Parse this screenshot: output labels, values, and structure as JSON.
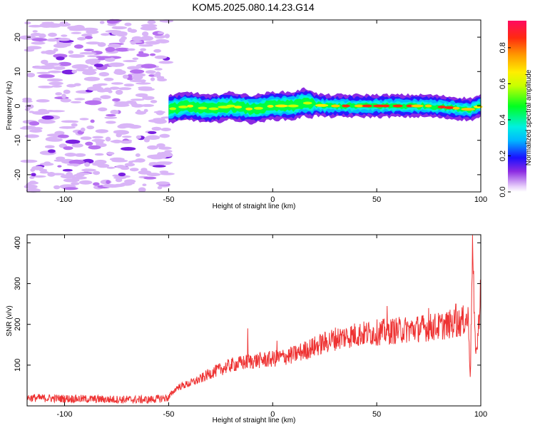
{
  "title": "KOM5.2025.080.14.23.G14",
  "chart_data": [
    {
      "type": "heatmap",
      "xlabel": "Height of straight line (km)",
      "ylabel": "Frequency (Hz)",
      "xlim": [
        -118,
        100
      ],
      "ylim": [
        -25,
        25
      ],
      "x_ticks": [
        -100,
        -50,
        0,
        50,
        100
      ],
      "y_ticks": [
        -20,
        -10,
        0,
        10,
        20
      ],
      "colorbar": {
        "label": "Normalized spectral amplitude",
        "range": [
          0,
          0.95
        ],
        "ticks": [
          0.0,
          0.2,
          0.4,
          0.6,
          0.8
        ]
      },
      "signal_band": {
        "x_start": -50,
        "x_end": 100,
        "center_frequency": [
          {
            "x": -50,
            "f": -1
          },
          {
            "x": -40,
            "f": 0
          },
          {
            "x": -30,
            "f": -1
          },
          {
            "x": -20,
            "f": 0
          },
          {
            "x": -10,
            "f": -1
          },
          {
            "x": 0,
            "f": 0
          },
          {
            "x": 10,
            "f": 0
          },
          {
            "x": 15,
            "f": 1
          },
          {
            "x": 25,
            "f": 0
          },
          {
            "x": 50,
            "f": 0
          },
          {
            "x": 75,
            "f": 0
          },
          {
            "x": 95,
            "f": -1
          },
          {
            "x": 100,
            "f": 0
          }
        ],
        "peak_amplitude_region": [
          25,
          95
        ]
      },
      "noise_region": {
        "x_start": -118,
        "x_end": -50
      }
    },
    {
      "type": "line",
      "xlabel": "Height of straight line (km)",
      "ylabel": "SNR (v/v)",
      "xlim": [
        -118,
        100
      ],
      "ylim": [
        0,
        420
      ],
      "x_ticks": [
        -100,
        -50,
        0,
        50,
        100
      ],
      "y_ticks": [
        100,
        200,
        300,
        400
      ],
      "series": [
        {
          "color": "#ee3333",
          "trend": [
            {
              "x": -118,
              "y": 20
            },
            {
              "x": -100,
              "y": 18
            },
            {
              "x": -80,
              "y": 16
            },
            {
              "x": -60,
              "y": 15
            },
            {
              "x": -50,
              "y": 20
            },
            {
              "x": -46,
              "y": 45
            },
            {
              "x": -40,
              "y": 55
            },
            {
              "x": -35,
              "y": 65
            },
            {
              "x": -30,
              "y": 80
            },
            {
              "x": -20,
              "y": 100
            },
            {
              "x": -10,
              "y": 110
            },
            {
              "x": 0,
              "y": 115
            },
            {
              "x": 10,
              "y": 125
            },
            {
              "x": 20,
              "y": 145
            },
            {
              "x": 30,
              "y": 165
            },
            {
              "x": 40,
              "y": 175
            },
            {
              "x": 50,
              "y": 180
            },
            {
              "x": 60,
              "y": 185
            },
            {
              "x": 70,
              "y": 190
            },
            {
              "x": 80,
              "y": 195
            },
            {
              "x": 90,
              "y": 205
            },
            {
              "x": 94,
              "y": 215
            },
            {
              "x": 95,
              "y": 70
            },
            {
              "x": 96,
              "y": 410
            },
            {
              "x": 97,
              "y": 180
            },
            {
              "x": 98,
              "y": 130
            },
            {
              "x": 99,
              "y": 200
            },
            {
              "x": 100,
              "y": 310
            }
          ],
          "spikes": [
            {
              "x": -12,
              "y": 190
            },
            {
              "x": 2,
              "y": 160
            },
            {
              "x": 55,
              "y": 245
            },
            {
              "x": 75,
              "y": 240
            },
            {
              "x": 88,
              "y": 250
            }
          ]
        }
      ]
    }
  ]
}
